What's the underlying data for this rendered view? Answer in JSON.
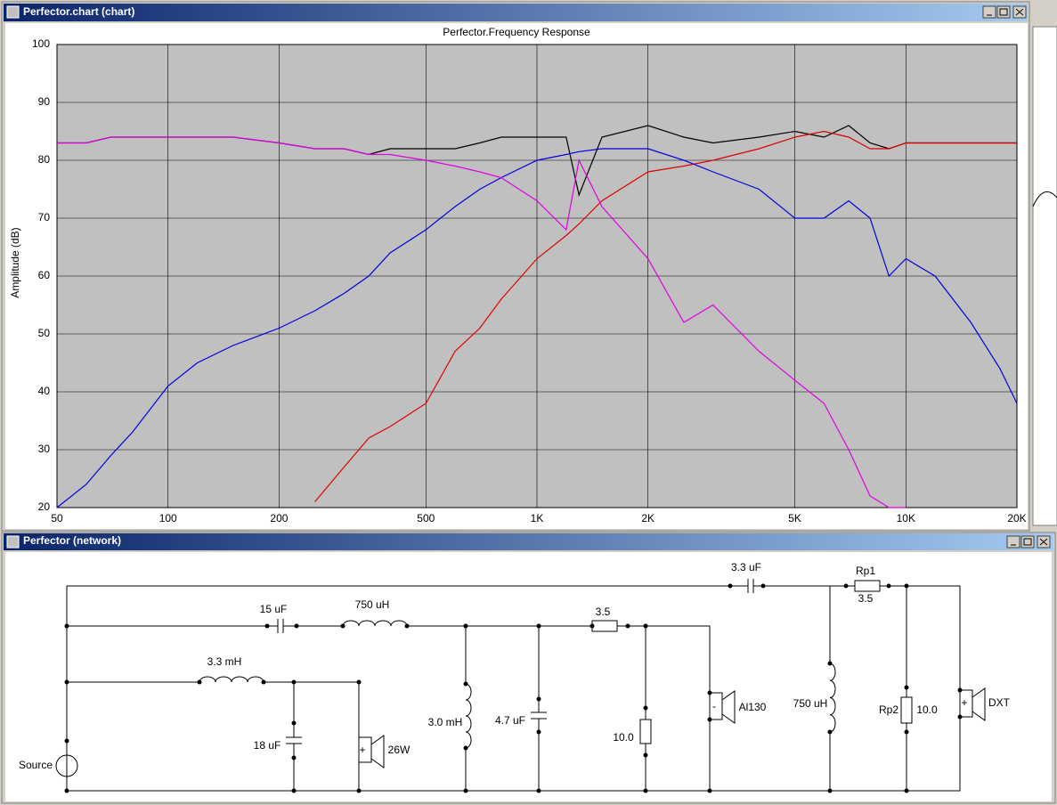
{
  "windows": {
    "chart_title": "Perfector.chart (chart)",
    "network_title": "Perfector (network)"
  },
  "chart_data": {
    "type": "line",
    "title": "Perfector.Frequency Response",
    "y_label": "Amplitude (dB)",
    "x": [
      50,
      60,
      70,
      80,
      100,
      120,
      150,
      200,
      250,
      300,
      350,
      400,
      500,
      600,
      700,
      800,
      1000,
      1200,
      1300,
      1500,
      2000,
      2500,
      3000,
      4000,
      5000,
      6000,
      7000,
      8000,
      9000,
      10000,
      12000,
      15000,
      18000,
      20000
    ],
    "series": [
      {
        "color": "#000000",
        "values": [
          83,
          83,
          84,
          84,
          84,
          84,
          84,
          83,
          82,
          82,
          81,
          82,
          82,
          82,
          83,
          84,
          84,
          84,
          74,
          84,
          86,
          84,
          83,
          84,
          85,
          84,
          86,
          83,
          82,
          83,
          83,
          83,
          83,
          83
        ]
      },
      {
        "color": "#e00000",
        "values": [
          null,
          null,
          null,
          null,
          null,
          null,
          null,
          null,
          21,
          27,
          32,
          34,
          38,
          47,
          51,
          56,
          63,
          67,
          69,
          73,
          78,
          79,
          80,
          82,
          84,
          85,
          84,
          82,
          82,
          83,
          83,
          83,
          83,
          83
        ]
      },
      {
        "color": "#0000e0",
        "values": [
          20,
          24,
          29,
          33,
          41,
          45,
          48,
          51,
          54,
          57,
          60,
          64,
          68,
          72,
          75,
          77,
          80,
          81,
          81.5,
          82,
          82,
          80,
          78,
          75,
          70,
          70,
          73,
          70,
          60,
          63,
          60,
          52,
          44,
          38
        ]
      },
      {
        "color": "#e000e0",
        "values": [
          83,
          83,
          84,
          84,
          84,
          84,
          84,
          83,
          82,
          82,
          81,
          81,
          80,
          79,
          78,
          77,
          73,
          68,
          80,
          72,
          63,
          52,
          55,
          47,
          42,
          38,
          30,
          22,
          20,
          20,
          null,
          null,
          null,
          null
        ]
      }
    ],
    "xscale": "log",
    "xlim": [
      50,
      20000
    ],
    "xticks": [
      50,
      100,
      200,
      500,
      {
        "value": 1000,
        "label": "1K"
      },
      {
        "value": 2000,
        "label": "2K"
      },
      {
        "value": 5000,
        "label": "5K"
      },
      {
        "value": 10000,
        "label": "10K"
      },
      {
        "value": 20000,
        "label": "20K"
      }
    ],
    "ylim": [
      20,
      100
    ],
    "yticks": [
      20,
      30,
      40,
      50,
      60,
      70,
      80,
      90,
      100
    ],
    "grid": true,
    "background": "#c0c0c0"
  },
  "network": {
    "labels": [
      "3.3 uF",
      "Rp1",
      "3.5",
      "15 uF",
      "750 uH",
      "3.5",
      "3.3 mH",
      "Source",
      "18 uF",
      "+",
      "26W",
      "3.0 mH",
      "4.7 uF",
      "10.0",
      "-",
      "Al130",
      "750 uH",
      "Rp2",
      "10.0",
      "+",
      "DXT"
    ]
  }
}
